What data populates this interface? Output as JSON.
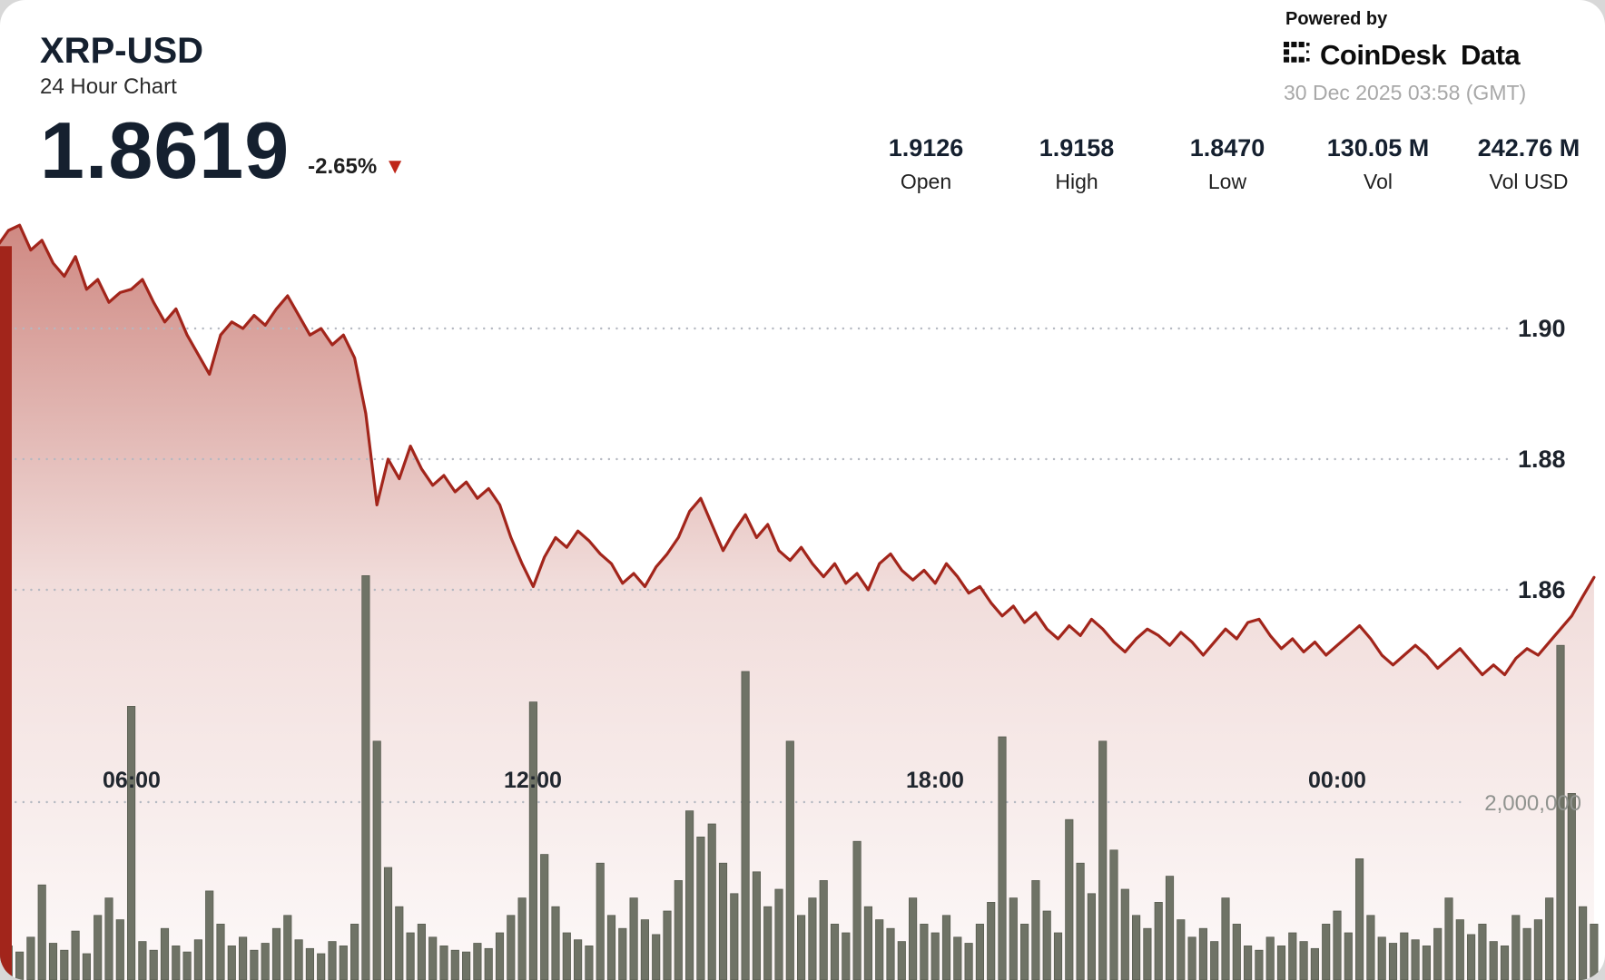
{
  "header": {
    "symbol": "XRP-USD",
    "subtitle": "24 Hour Chart",
    "price": "1.8619",
    "change": "-2.65%",
    "change_direction": "down",
    "powered_by": "Powered by",
    "brand_1": "CoinDesk",
    "brand_2": "Data",
    "timestamp": "30 Dec 2025 03:58 (GMT)"
  },
  "icons": {
    "triangle_down": "▼"
  },
  "stats": [
    {
      "value": "1.9126",
      "label": "Open"
    },
    {
      "value": "1.9158",
      "label": "High"
    },
    {
      "value": "1.8470",
      "label": "Low"
    },
    {
      "value": "130.05 M",
      "label": "Vol"
    },
    {
      "value": "242.76 M",
      "label": "Vol USD"
    }
  ],
  "colors": {
    "accent_red": "#a2251b",
    "fill": "#a8291d",
    "volume_bar": "#6f7366",
    "volume_bar_edge": "#565a4e",
    "grid": "#b4b8c1",
    "text_dark": "#15202f",
    "text_gray": "#a8a8a8"
  },
  "chart_data": {
    "type": "line+bar",
    "title": "XRP-USD 24 Hour Chart",
    "interval_minutes": 10,
    "legend": "off",
    "grid": "dotted-horizontal",
    "time_ticks": [
      {
        "hour": 2,
        "label": "06:00"
      },
      {
        "hour": 8,
        "label": "12:00"
      },
      {
        "hour": 14,
        "label": "18:00"
      },
      {
        "hour": 20,
        "label": "00:00"
      }
    ],
    "price_ticks": [
      {
        "value": 1.9,
        "label": "1.90"
      },
      {
        "value": 1.88,
        "label": "1.88"
      },
      {
        "value": 1.86,
        "label": "1.86"
      }
    ],
    "volume_ticks": [
      {
        "value": 2000000,
        "label": "2,000,000"
      }
    ],
    "summary": {
      "open": 1.9126,
      "high": 1.9158,
      "low": 1.847,
      "last": 1.8619,
      "change_pct": -2.65,
      "vol": "130.05 M",
      "vol_usd": "242.76 M"
    },
    "price_series": {
      "name": "XRP-USD price",
      "color": "#a2251b",
      "values": [
        1.9126,
        1.915,
        1.9158,
        1.912,
        1.9135,
        1.91,
        1.908,
        1.911,
        1.906,
        1.9075,
        1.904,
        1.9055,
        1.906,
        1.9075,
        1.904,
        1.901,
        1.903,
        1.899,
        1.896,
        1.893,
        1.899,
        1.901,
        1.9,
        1.902,
        1.9005,
        1.903,
        1.905,
        1.902,
        1.899,
        1.9,
        1.8975,
        1.899,
        1.8955,
        1.887,
        1.873,
        1.88,
        1.877,
        1.882,
        1.8785,
        1.876,
        1.8775,
        1.875,
        1.8765,
        1.874,
        1.8755,
        1.873,
        1.868,
        1.864,
        1.8605,
        1.865,
        1.868,
        1.8665,
        1.869,
        1.8675,
        1.8655,
        1.864,
        1.861,
        1.8625,
        1.8605,
        1.8635,
        1.8655,
        1.868,
        1.872,
        1.874,
        1.87,
        1.866,
        1.869,
        1.8715,
        1.868,
        1.87,
        1.866,
        1.8645,
        1.8665,
        1.864,
        1.862,
        1.864,
        1.861,
        1.8625,
        1.86,
        1.864,
        1.8655,
        1.863,
        1.8615,
        1.863,
        1.861,
        1.864,
        1.862,
        1.8595,
        1.8605,
        1.858,
        1.856,
        1.8575,
        1.855,
        1.8565,
        1.854,
        1.8525,
        1.8545,
        1.853,
        1.8555,
        1.854,
        1.852,
        1.8505,
        1.8525,
        1.854,
        1.853,
        1.8515,
        1.8535,
        1.852,
        1.85,
        1.852,
        1.854,
        1.8525,
        1.855,
        1.8555,
        1.853,
        1.851,
        1.8525,
        1.8505,
        1.852,
        1.85,
        1.8515,
        1.853,
        1.8545,
        1.8525,
        1.85,
        1.8485,
        1.85,
        1.8515,
        1.85,
        1.848,
        1.8495,
        1.851,
        1.849,
        1.847,
        1.8485,
        1.847,
        1.8495,
        1.851,
        1.85,
        1.852,
        1.854,
        1.856,
        1.859,
        1.8619
      ]
    },
    "volume_series": {
      "name": "Volume",
      "color": "#6f7366",
      "values": [
        620000,
        350000,
        280000,
        450000,
        1050000,
        380000,
        300000,
        520000,
        260000,
        700000,
        900000,
        650000,
        3100000,
        400000,
        300000,
        550000,
        350000,
        280000,
        420000,
        980000,
        600000,
        350000,
        450000,
        300000,
        380000,
        550000,
        700000,
        420000,
        320000,
        260000,
        400000,
        350000,
        600000,
        4600000,
        2700000,
        1250000,
        800000,
        500000,
        600000,
        450000,
        350000,
        300000,
        280000,
        380000,
        320000,
        500000,
        700000,
        900000,
        3150000,
        1400000,
        800000,
        500000,
        420000,
        350000,
        1300000,
        700000,
        550000,
        900000,
        650000,
        480000,
        750000,
        1100000,
        1900000,
        1600000,
        1750000,
        1300000,
        950000,
        3500000,
        1200000,
        800000,
        1000000,
        2700000,
        700000,
        900000,
        1100000,
        600000,
        500000,
        1550000,
        800000,
        650000,
        550000,
        400000,
        900000,
        600000,
        500000,
        700000,
        450000,
        380000,
        600000,
        850000,
        2750000,
        900000,
        600000,
        1100000,
        750000,
        500000,
        1800000,
        1300000,
        950000,
        2700000,
        1450000,
        1000000,
        700000,
        550000,
        850000,
        1150000,
        650000,
        450000,
        550000,
        400000,
        900000,
        600000,
        350000,
        300000,
        450000,
        350000,
        500000,
        400000,
        320000,
        600000,
        750000,
        500000,
        1350000,
        700000,
        450000,
        380000,
        500000,
        420000,
        350000,
        550000,
        900000,
        650000,
        480000,
        600000,
        400000,
        350000,
        700000,
        550000,
        650000,
        900000,
        3800000,
        2100000,
        800000,
        600000
      ]
    }
  }
}
